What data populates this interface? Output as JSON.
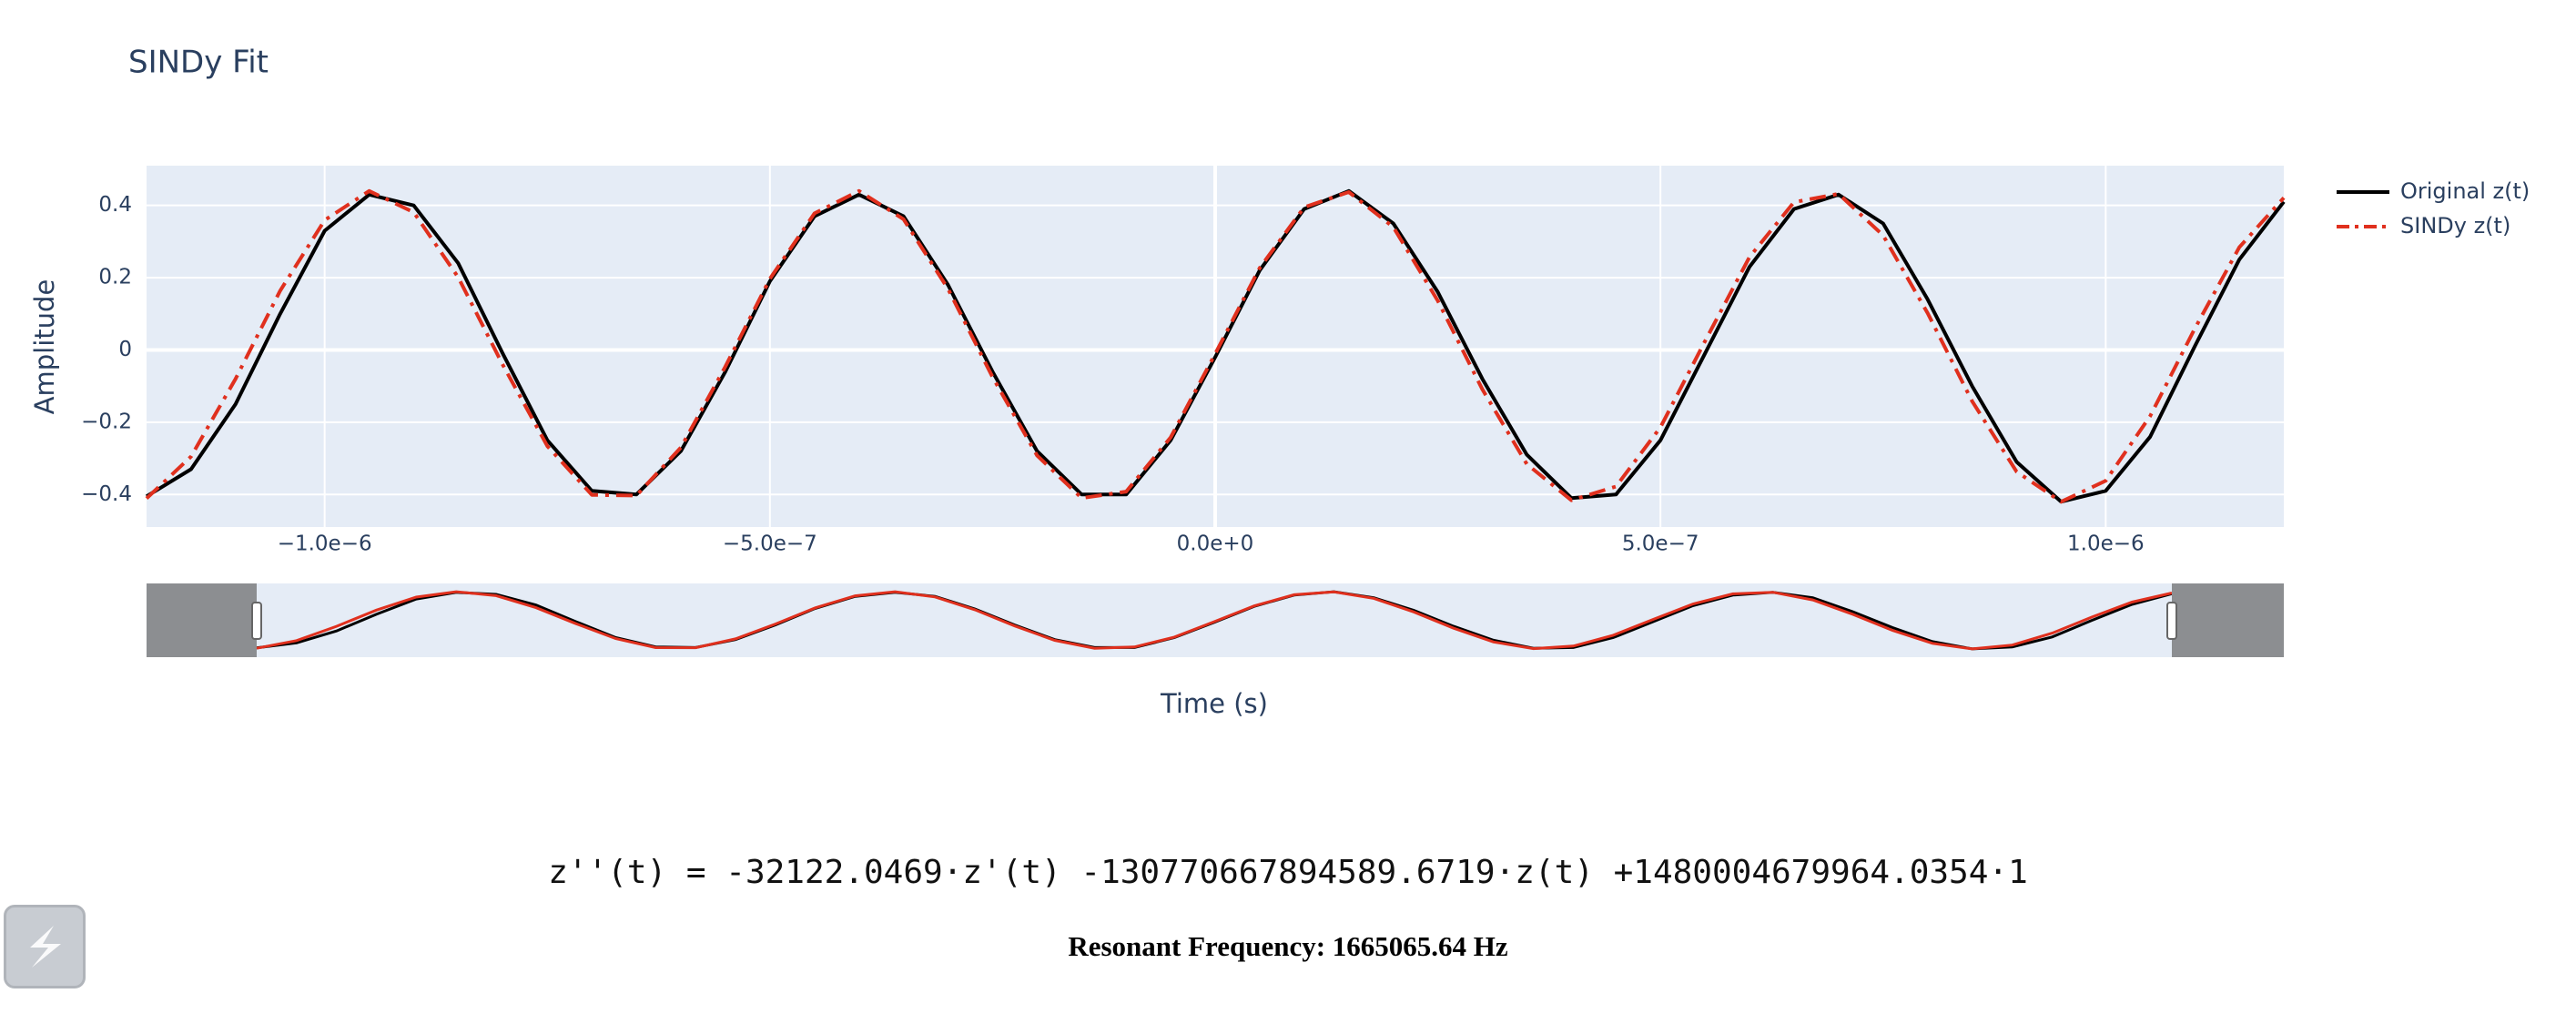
{
  "chart_data": {
    "type": "line",
    "title": "SINDy Fit",
    "x_label": "Time (s)",
    "y_label": "Amplitude",
    "x": [
      -1.2e-06,
      -1.15e-06,
      -1.1e-06,
      -1.05e-06,
      -1e-06,
      -9.5e-07,
      -9e-07,
      -8.5e-07,
      -8e-07,
      -7.5e-07,
      -7e-07,
      -6.5e-07,
      -6e-07,
      -5.5e-07,
      -5e-07,
      -4.5e-07,
      -4e-07,
      -3.5e-07,
      -3e-07,
      -2.5e-07,
      -2e-07,
      -1.5e-07,
      -1e-07,
      -5e-08,
      0,
      5e-08,
      1e-07,
      1.5e-07,
      2e-07,
      2.5e-07,
      3e-07,
      3.5e-07,
      4e-07,
      4.5e-07,
      5e-07,
      5.5e-07,
      6e-07,
      6.5e-07,
      7e-07,
      7.5e-07,
      8e-07,
      8.5e-07,
      9e-07,
      9.5e-07,
      1e-06,
      1.05e-06,
      1.1e-06,
      1.15e-06,
      1.2e-06
    ],
    "series": [
      {
        "name": "Original z(t)",
        "color": "#000000",
        "dash": "solid",
        "values": [
          -0.405,
          -0.33,
          -0.15,
          0.1,
          0.33,
          0.43,
          0.4,
          0.24,
          -0.01,
          -0.25,
          -0.39,
          -0.4,
          -0.28,
          -0.06,
          0.19,
          0.37,
          0.43,
          0.37,
          0.18,
          -0.06,
          -0.28,
          -0.4,
          -0.4,
          -0.25,
          -0.02,
          0.22,
          0.39,
          0.44,
          0.35,
          0.16,
          -0.08,
          -0.29,
          -0.41,
          -0.4,
          -0.25,
          -0.01,
          0.23,
          0.39,
          0.43,
          0.35,
          0.14,
          -0.1,
          -0.31,
          -0.42,
          -0.39,
          -0.24,
          0.01,
          0.25,
          0.41
        ]
      },
      {
        "name": "SINDy z(t)",
        "color": "#e0301e",
        "dash": "dashdot",
        "values": [
          -0.411,
          -0.295,
          -0.08,
          0.164,
          0.359,
          0.44,
          0.381,
          0.201,
          -0.041,
          -0.266,
          -0.401,
          -0.403,
          -0.27,
          -0.046,
          0.197,
          0.378,
          0.44,
          0.362,
          0.169,
          -0.075,
          -0.292,
          -0.41,
          -0.392,
          -0.242,
          -0.011,
          0.227,
          0.395,
          0.437,
          0.34,
          0.136,
          -0.109,
          -0.316,
          -0.416,
          -0.378,
          -0.214,
          0.024,
          0.257,
          0.409,
          0.432,
          0.317,
          0.102,
          -0.142,
          -0.337,
          -0.42,
          -0.362,
          -0.183,
          0.059,
          0.284,
          0.421
        ]
      }
    ],
    "xlim": [
      -1.2e-06,
      1.2e-06
    ],
    "xticks": [
      {
        "value": -1e-06,
        "label": "−1.0e−6"
      },
      {
        "value": -5e-07,
        "label": "−5.0e−7"
      },
      {
        "value": 0,
        "label": "0.0e+0"
      },
      {
        "value": 5e-07,
        "label": "5.0e−7"
      },
      {
        "value": 1e-06,
        "label": "1.0e−6"
      }
    ],
    "ylim": [
      -0.49,
      0.51
    ],
    "yticks": [
      {
        "value": -0.4,
        "label": "−0.4"
      },
      {
        "value": -0.2,
        "label": "−0.2"
      },
      0,
      0.2,
      0.4
    ],
    "grid": true,
    "legend": "top-right outside",
    "rangeslider": true
  },
  "equation": "z''(t) = -32122.0469·z'(t) -130770667894589.6719·z(t) +1480004679964.0354·1",
  "resonant_frequency": "Resonant Frequency: 1665065.64 Hz"
}
